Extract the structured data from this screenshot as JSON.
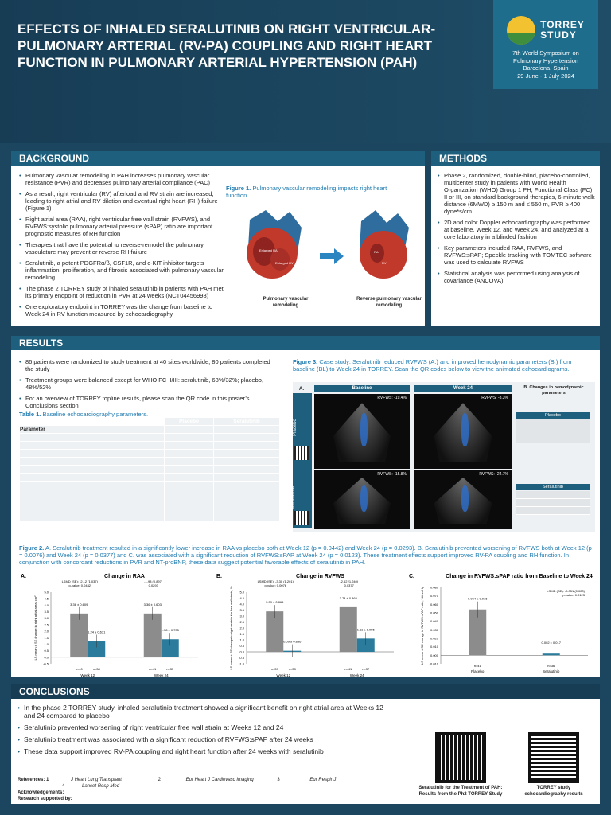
{
  "header": {
    "title": "EFFECTS OF INHALED SERALUTINIB ON RIGHT VENTRICULAR-PULMONARY ARTERIAL (RV-PA) COUPLING AND RIGHT HEART FUNCTION IN PULMONARY ARTERIAL HYPERTENSION (PAH)",
    "logo_line1": "TORREY",
    "logo_line2": "STUDY",
    "event1": "7th World Symposium on",
    "event2": "Pulmonary Hypertension",
    "event3": "Barcelona, Spain",
    "event4": "29 June - 1 July 2024"
  },
  "background": {
    "title": "BACKGROUND",
    "bullets": [
      "Pulmonary vascular remodeling in PAH increases pulmonary vascular resistance (PVR) and decreases pulmonary arterial compliance (PAC)",
      "As a result, right ventricular (RV) afterload and RV strain are increased, leading to right atrial and RV dilation and eventual right heart (RH) failure (Figure 1)",
      "Right atrial area (RAA), right ventricular free wall strain (RVFWS), and RVFWS:systolic pulmonary arterial pressure (sPAP) ratio are important prognostic measures of RH function",
      "Therapies that have the potential to reverse-remodel the pulmonary vasculature may prevent or reverse RH failure",
      "Seralutinib, a potent PDGFRα/β, CSF1R, and c-KIT inhibitor targets inflammation, proliferation, and fibrosis associated with pulmonary vascular remodeling",
      "The phase 2 TORREY study of inhaled seralutinib in patients with PAH met its primary endpoint of reduction in PVR at 24 weeks (NCT04456998)",
      "One exploratory endpoint in TORREY was the change from baseline to Week 24 in RV function measured by echocardiography"
    ],
    "fig1_label": "Figure 1.",
    "fig1_caption": "Pulmonary vascular remodeling impacts right heart function.",
    "heart_left_label": "Pulmonary vascular remodeling",
    "heart_right_label": "Reverse pulmonary vascular remodeling",
    "heart_labels": [
      "Enlarged RA",
      "Enlarged RV",
      "RA",
      "RV"
    ]
  },
  "methods": {
    "title": "METHODS",
    "bullets": [
      "Phase 2, randomized, double-blind, placebo-controlled, multicenter study in patients with World Health Organization (WHO) Group 1 PH, Functional Class (FC) II or III, on standard background therapies, 6-minute walk distance (6MWD) ≥ 150 m and ≤ 550 m, PVR ≥ 400 dyne*s/cm",
      "2D and color Doppler echocardiography was performed at baseline, Week 12, and Week 24, and analyzed at a core laboratory in a blinded fashion",
      "Key parameters included RAA, RVFWS, and RVFWS:sPAP; Speckle tracking with TOMTEC software was used to calculate RVFWS",
      "Statistical analysis was performed using analysis of covariance (ANCOVA)"
    ]
  },
  "results": {
    "title": "RESULTS",
    "bullets": [
      "86 patients were randomized to study treatment at 40 sites worldwide; 80 patients completed the study",
      "Treatment groups were balanced except for WHO FC II/III: seralutinib, 68%/32%; placebo, 48%/52%",
      "For an overview of TORREY topline results,  please scan the QR code in this poster’s Conclusions section"
    ],
    "table1_label": "Table 1.",
    "table1_caption": "Baseline echocardiography parameters.",
    "table_header_placebo": "Placebo",
    "table_header_seralutinib": "Seralutinib",
    "table_param": "Parameter",
    "fig3_label": "Figure 3.",
    "fig3_caption": "Case study: Seralutinib reduced RVFWS (A.) and improved hemodynamic parameters (B.) from baseline (BL) to Week 24 in TORREY. Scan the QR codes below to view the animated echocardiograms.",
    "fig3_A": "A.",
    "fig3_baseline": "Baseline",
    "fig3_week24": "Week 24",
    "fig3_B": "B. Changes in hemodynamic parameters",
    "fig3_row_placebo": "Placebo",
    "fig3_row_seralutinib": "Seralutinib",
    "echo_labels": [
      "RVFWS: -19.4%",
      "RVFWS: -8.3%",
      "RVFWS: -15.8%",
      "RVFWS: -24.7%"
    ],
    "fig2_label": "Figure 2.",
    "fig2_caption": "A. Seralutinib treatment resulted in a significantly lower increase in RAA vs placebo both at Week 12 (p = 0.0442) and Week 24 (p = 0.0293). B. Seralutinib prevented worsening of RVFWS both at Week 12 (p = 0.0076) and Week 24 (p = 0.0377) and C. was associated with a significant reduction of RVFWS:sPAP at Week 24 (p = 0.0123). These treatment effects support improved RV-PA coupling and RH function. In conjunction with concordant reductions in PVR and NT-proBNP, these data suggest potential favorable effects of seralutinib in PAH."
  },
  "chart_data": [
    {
      "type": "bar",
      "panel": "A.",
      "title": "Change in RAA",
      "ylabel": "LS mean ± SE change in right atrial area, cm²",
      "categories": [
        "Week 12",
        "Week 24"
      ],
      "ylim": [
        -0.5,
        5.0
      ],
      "series": [
        {
          "name": "Placebo",
          "values": [
            3.36,
            3.36
          ],
          "labels": [
            "3.36 ± 0.609",
            "3.36 ± 0.603"
          ],
          "n": [
            "n=40",
            "n=41"
          ]
        },
        {
          "name": "Seralutinib",
          "values": [
            1.24,
            1.38
          ],
          "labels": [
            "1.24 ± 0.631",
            "1.38 ± 0.735"
          ],
          "n": [
            "n=38",
            "n=35"
          ]
        }
      ],
      "stats": [
        {
          "lsmd": "LSMD (SE): -2.12 (1.037)",
          "p": "p-value: 0.0442"
        },
        {
          "lsmd": "-1.98 (0.897)",
          "p": "0.0293"
        }
      ],
      "yticks": [
        "5.0",
        "4.5",
        "4.0",
        "3.5",
        "3.0",
        "2.5",
        "2.0",
        "1.5",
        "1.0",
        "0.5",
        "0.0",
        "-0.5"
      ]
    },
    {
      "type": "bar",
      "panel": "B.",
      "title": "Change in RVFWS",
      "ylabel": "LS mean ± SE change in right ventricular free wall strain, %",
      "categories": [
        "Week 12",
        "Week 24"
      ],
      "ylim": [
        -1.0,
        5.0
      ],
      "series": [
        {
          "name": "Placebo",
          "values": [
            3.39,
            3.74
          ],
          "labels": [
            "3.39 ± 0.865",
            "3.74 ± 0.865"
          ],
          "n": [
            "n=39",
            "n=41"
          ]
        },
        {
          "name": "Seralutinib",
          "values": [
            0.09,
            1.11
          ],
          "labels": [
            "0.09 ± 0.836",
            "1.11 ± 1.055"
          ],
          "n": [
            "n=38",
            "n=37"
          ]
        }
      ],
      "stats": [
        {
          "lsmd": "LSMD (SE): -3.30 (1.201)",
          "p": "p-value: 0.0076"
        },
        {
          "lsmd": "-2.62 (1.240)",
          "p": "0.0377"
        }
      ],
      "yticks": [
        "5.0",
        "4.5",
        "4.0",
        "3.5",
        "3.0",
        "2.5",
        "2.0",
        "1.5",
        "1.0",
        "0.5",
        "0.0",
        "-0.5",
        "-1.0"
      ]
    },
    {
      "type": "bar",
      "panel": "C.",
      "title": "Change in RVFWS:sPAP ratio from Baseline to Week 24",
      "ylabel": "LS mean ± SE change in RVFWS:sPAP ratio, %/mmHg",
      "categories": [
        "Placebo",
        "Seralutinib"
      ],
      "ylim": [
        -0.01,
        0.08
      ],
      "values": [
        0.054,
        0.002
      ],
      "labels": [
        "0.054 ± 0.016",
        "0.002 ± 0.017"
      ],
      "n": [
        "n=41",
        "n=36"
      ],
      "stats": [
        {
          "lsmd": "LSMD (SE): -0.051 (0.020)",
          "p": "p-value: 0.0123"
        }
      ],
      "yticks": [
        "0.080",
        "0.070",
        "0.060",
        "0.050",
        "0.040",
        "0.030",
        "0.020",
        "0.010",
        "0.000",
        "-0.010"
      ]
    }
  ],
  "legend": {
    "placebo": "Placebo",
    "seralutinib": "Seralutinib"
  },
  "conclusions": {
    "title": "CONCLUSIONS",
    "bullets": [
      "In the phase 2 TORREY study, inhaled seralutinib treatment showed a significant benefit on right atrial area at Weeks 12 and 24 compared to placebo",
      "Seralutinib prevented worsening of right ventricular free wall strain at Weeks 12 and 24",
      "Seralutinib treatment was associated with a significant reduction of RVFWS:sPAP after 24 weeks",
      "These data support improved RV-PA coupling and right heart function after 24 weeks with seralutinib"
    ],
    "qr1_caption": "Seralutinib for the Treatment of PAH: Results from the Ph2 TORREY Study",
    "qr2_caption": "TORREY study echocardiography results"
  },
  "footer": {
    "references": "References: 1",
    "acknowledgements": "Acknowledgements:",
    "research": "Research supported by:",
    "ref1": "J Heart Lung Transplant",
    "ref1b": "Lancet Resp Med",
    "ref2num": "2",
    "ref2": "Eur Heart J Cardiovasc Imaging",
    "ref3num": "3",
    "ref3": "Eur Respir J",
    "ref4num": "4"
  },
  "colors": {
    "navy": "#173d55",
    "teal": "#1d5f7c",
    "placebo_bar": "#8c8c8c",
    "seralutinib_bar": "#2b7c9c",
    "accent_blue": "#1d7ab0"
  }
}
